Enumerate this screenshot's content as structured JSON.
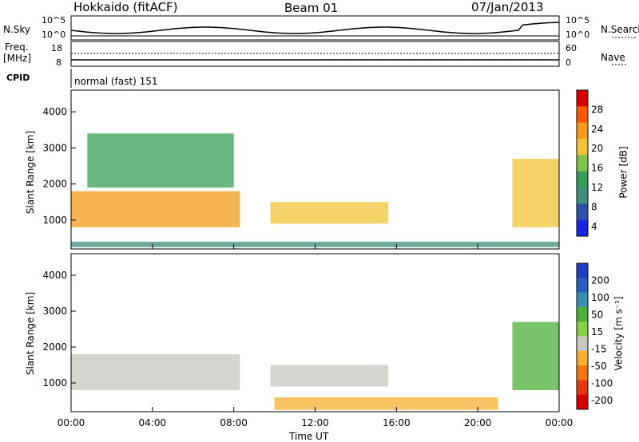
{
  "header": {
    "station": "Hokkaido (fitACF)",
    "beam": "Beam 01",
    "date": "07/Jan/2013"
  },
  "aux_panels": {
    "nsky_label": "N.Sky",
    "freq_label_top": "Freq.",
    "freq_label_bottom": "[MHz]",
    "cpid_label": "CPID",
    "nsearch_label": "N.Search",
    "nave_label": "Nave",
    "noise_left_top": "10^5",
    "noise_left_bottom": "10^0",
    "noise_right_top": "10^5",
    "noise_right_bottom": "10^0",
    "freq_tick_top": "18",
    "freq_tick_bottom": "8",
    "nave_tick_top": "60",
    "nave_tick_bottom": "0",
    "cpid_text": "normal (fast) 151"
  },
  "chart_data": [
    {
      "type": "heatmap",
      "name": "Power",
      "ylabel": "Slant Range [km]",
      "xlabel": "Time UT",
      "y_ticks": [
        "4000",
        "3000",
        "2000",
        "1000"
      ],
      "x_ticks": [
        "00:00",
        "04:00",
        "08:00",
        "12:00",
        "16:00",
        "20:00",
        "00:00"
      ],
      "ylim": [
        200,
        4600
      ],
      "colorbar": {
        "label": "Power [dB]",
        "ticks": [
          "28",
          "24",
          "20",
          "16",
          "12",
          "8",
          "4"
        ],
        "range": [
          0,
          30
        ],
        "colors": [
          "#d80000",
          "#ff5a00",
          "#f39c1a",
          "#f0c43a",
          "#7fc24a",
          "#3a9c59",
          "#3f8f7a",
          "#2f4fa8",
          "#1727e0"
        ]
      },
      "regions": [
        {
          "t_start": 0.0,
          "t_end": 8.3,
          "r_min": 800,
          "r_max": 1800,
          "power_db": 24
        },
        {
          "t_start": 0.8,
          "t_end": 8.0,
          "r_min": 1900,
          "r_max": 3400,
          "power_db": 10
        },
        {
          "t_start": 9.8,
          "t_end": 15.6,
          "r_min": 900,
          "r_max": 1500,
          "power_db": 18
        },
        {
          "t_start": 21.7,
          "t_end": 24.0,
          "r_min": 800,
          "r_max": 2700,
          "power_db": 20
        },
        {
          "t_start": 0.0,
          "t_end": 24.0,
          "r_min": 250,
          "r_max": 400,
          "power_db": 8
        }
      ]
    },
    {
      "type": "heatmap",
      "name": "Velocity",
      "ylabel": "Slant Range [km]",
      "xlabel": "Time UT",
      "y_ticks": [
        "4000",
        "3000",
        "2000",
        "1000"
      ],
      "x_ticks": [
        "00:00",
        "04:00",
        "08:00",
        "12:00",
        "16:00",
        "20:00",
        "00:00"
      ],
      "ylim": [
        200,
        4600
      ],
      "colorbar": {
        "label": "Velocity [m s⁻¹]",
        "ticks": [
          "200",
          "100",
          "50",
          "15",
          "-15",
          "-50",
          "-100",
          "-200"
        ],
        "range": [
          -250,
          250
        ],
        "colors": [
          "#1f3fbf",
          "#2a5fbf",
          "#3a8fb0",
          "#4caf3a",
          "#86d04a",
          "#c8c8c0",
          "#f5b030",
          "#f07a10",
          "#e43a10",
          "#d40000"
        ]
      },
      "regions": [
        {
          "t_start": 0.0,
          "t_end": 8.3,
          "r_min": 800,
          "r_max": 1800,
          "velocity": 0
        },
        {
          "t_start": 9.8,
          "t_end": 15.6,
          "r_min": 900,
          "r_max": 1500,
          "velocity": 0
        },
        {
          "t_start": 21.7,
          "t_end": 24.0,
          "r_min": 800,
          "r_max": 2700,
          "velocity": 60
        },
        {
          "t_start": 10.0,
          "t_end": 21.0,
          "r_min": 250,
          "r_max": 600,
          "velocity": -60
        }
      ]
    }
  ]
}
